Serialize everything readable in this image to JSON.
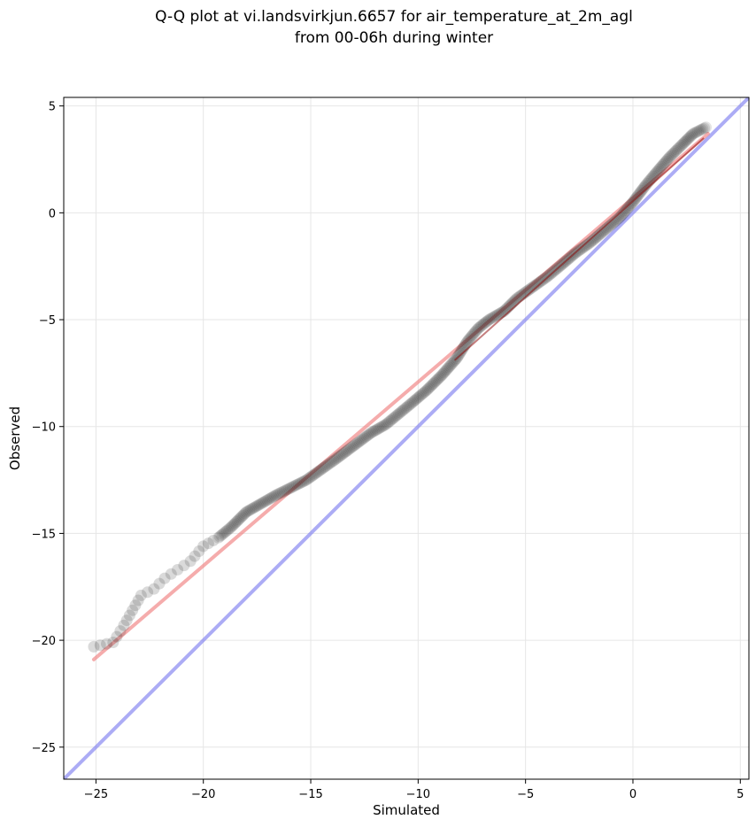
{
  "figure": {
    "title_line1": "Q-Q plot at vi.landsvirkjun.6657 for air_temperature_at_2m_agl",
    "title_line2": "from 00-06h during winter"
  },
  "chart_data": {
    "type": "scatter",
    "title": "Q-Q plot at vi.landsvirkjun.6657 for air_temperature_at_2m_agl\nfrom 00-06h during winter",
    "xlabel": "Simulated",
    "ylabel": "Observed",
    "xlim": [
      -26.5,
      5.4
    ],
    "ylim": [
      -26.5,
      5.4
    ],
    "xticks": [
      -25,
      -20,
      -15,
      -10,
      -5,
      0,
      5
    ],
    "yticks": [
      -25,
      -20,
      -15,
      -10,
      -5,
      0,
      5
    ],
    "xtick_labels": [
      "−25",
      "−20",
      "−15",
      "−10",
      "−5",
      "0",
      "5"
    ],
    "ytick_labels": [
      "−25",
      "−20",
      "−15",
      "−10",
      "−5",
      "0",
      "5"
    ],
    "grid": true,
    "colors": {
      "points": "#1a1a1a",
      "fit_line": "#f08080",
      "identity_line": "#8080f0",
      "fit_overlay": "#8b0000"
    },
    "quantile_curve": [
      [
        -25.1,
        -20.3
      ],
      [
        -24.2,
        -20.1
      ],
      [
        -23.7,
        -19.3
      ],
      [
        -23.3,
        -18.6
      ],
      [
        -22.9,
        -17.9
      ],
      [
        -22.3,
        -17.6
      ],
      [
        -21.8,
        -17.1
      ],
      [
        -21.2,
        -16.7
      ],
      [
        -20.6,
        -16.3
      ],
      [
        -20.0,
        -15.6
      ],
      [
        -19.3,
        -15.2
      ],
      [
        -18.7,
        -14.7
      ],
      [
        -18.0,
        -14.0
      ],
      [
        -17.3,
        -13.6
      ],
      [
        -16.6,
        -13.2
      ],
      [
        -16.0,
        -12.9
      ],
      [
        -15.2,
        -12.5
      ],
      [
        -14.5,
        -12.0
      ],
      [
        -13.8,
        -11.5
      ],
      [
        -13.0,
        -10.9
      ],
      [
        -12.2,
        -10.3
      ],
      [
        -11.5,
        -9.9
      ],
      [
        -10.9,
        -9.4
      ],
      [
        -10.3,
        -8.9
      ],
      [
        -9.6,
        -8.3
      ],
      [
        -8.9,
        -7.6
      ],
      [
        -8.2,
        -6.8
      ],
      [
        -7.7,
        -6.0
      ],
      [
        -7.2,
        -5.4
      ],
      [
        -6.7,
        -5.0
      ],
      [
        -6.0,
        -4.6
      ],
      [
        -5.4,
        -4.0
      ],
      [
        -4.7,
        -3.5
      ],
      [
        -4.0,
        -3.0
      ],
      [
        -3.4,
        -2.5
      ],
      [
        -2.7,
        -1.9
      ],
      [
        -2.0,
        -1.4
      ],
      [
        -1.3,
        -0.8
      ],
      [
        -0.6,
        -0.2
      ],
      [
        0.0,
        0.5
      ],
      [
        0.6,
        1.3
      ],
      [
        1.1,
        1.9
      ],
      [
        1.7,
        2.6
      ],
      [
        2.3,
        3.2
      ],
      [
        2.8,
        3.7
      ],
      [
        3.4,
        4.0
      ]
    ],
    "fit_line": {
      "x": [
        -25.1,
        3.5
      ],
      "y": [
        -20.9,
        3.7
      ]
    },
    "identity_line": {
      "x": [
        -26.5,
        5.4
      ],
      "y": [
        -26.5,
        5.4
      ]
    }
  }
}
